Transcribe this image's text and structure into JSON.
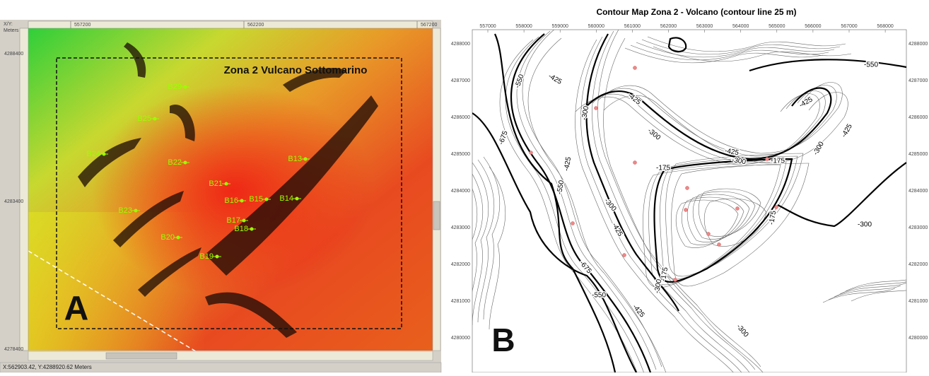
{
  "panel_a": {
    "axis_label_1": "X/Y:",
    "axis_label_2": "Meters",
    "x_ticks": [
      "557200",
      "562200",
      "567200"
    ],
    "y_ticks": [
      "4288400",
      "4283400",
      "4278400"
    ],
    "title": "Zona 2 Vulcano Sottomarino",
    "points": [
      "B29",
      "B25",
      "B24",
      "B22",
      "B13",
      "B21",
      "B16",
      "B15",
      "B14",
      "B23",
      "B17",
      "B18",
      "B20",
      "B19"
    ],
    "letter": "A",
    "status": "X:562903.42, Y:4288920.62 Meters"
  },
  "panel_b": {
    "title": "Contour Map Zona 2 - Volcano (contour line 25 m)",
    "x_ticks": [
      "557000",
      "558000",
      "559000",
      "560000",
      "561000",
      "562000",
      "563000",
      "564000",
      "565000",
      "566000",
      "567000",
      "568000"
    ],
    "y_ticks": [
      "4288000",
      "4287000",
      "4286000",
      "4285000",
      "4284000",
      "4283000",
      "4282000",
      "4281000",
      "4280000"
    ],
    "contour_labels": [
      "-550",
      "-425",
      "-425",
      "-300",
      "-300",
      "-425",
      "-300",
      "-175",
      "-300",
      "-425",
      "-425",
      "-550",
      "-675",
      "-425",
      "-550",
      "-300",
      "-425",
      "-175",
      "-300",
      "-175",
      "-300",
      "-675",
      "-550",
      "-425",
      "-300",
      "-175"
    ],
    "letter": "B"
  }
}
